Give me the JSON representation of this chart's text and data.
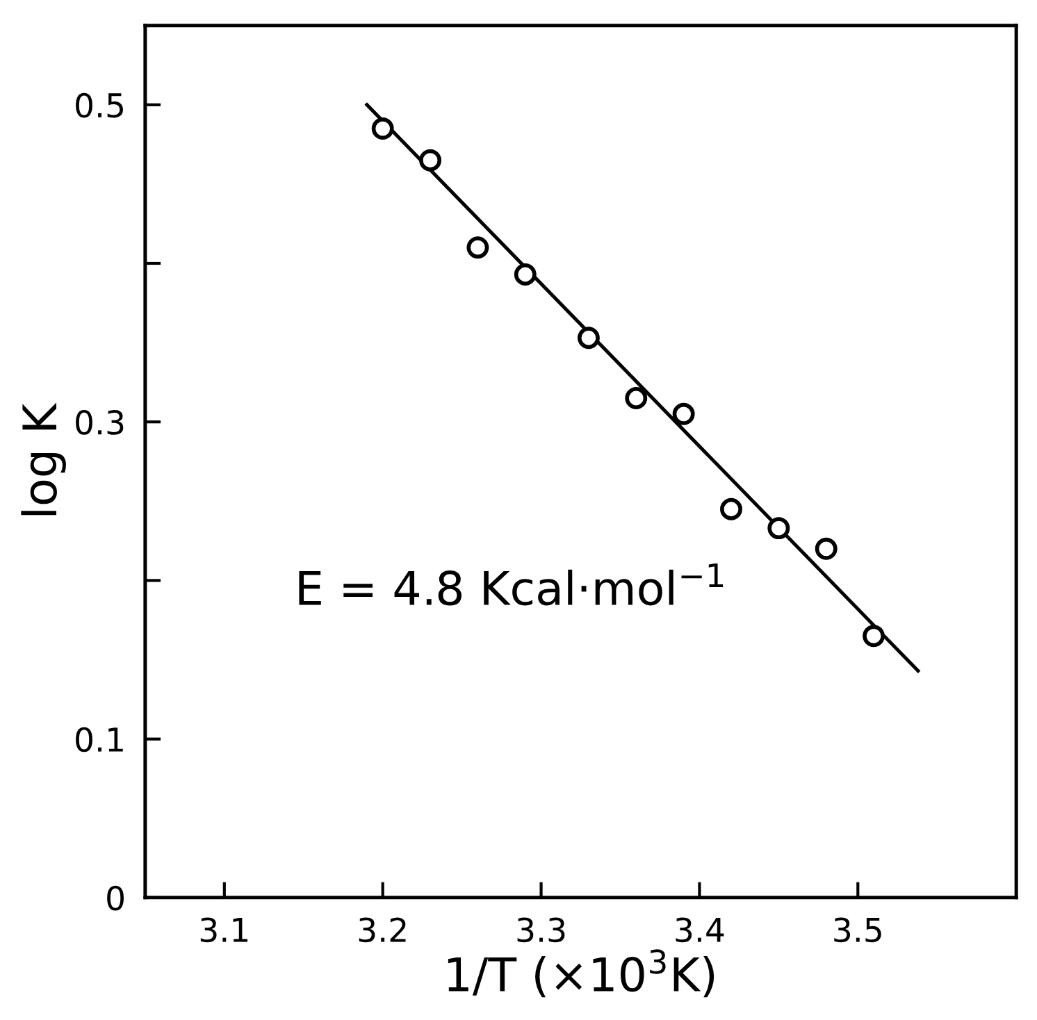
{
  "chart_data": {
    "type": "scatter",
    "xlabel": "1/T (×10$^{3}$K)",
    "ylabel": "log K",
    "annotations": [
      "E = 4.8 Kcal·mol$^{−1}$"
    ],
    "series": [
      {
        "color": "#000000",
        "marker": "circle",
        "x": [
          3.2,
          3.23,
          3.26,
          3.29,
          3.33,
          3.36,
          3.39,
          3.42,
          3.45,
          3.48,
          3.51
        ],
        "values": [
          0.485,
          0.465,
          0.41,
          0.393,
          0.353,
          0.315,
          0.305,
          0.245,
          0.233,
          0.22,
          0.165
        ]
      },
      {
        "type": "line",
        "color": "#000000",
        "line_style": "solid",
        "x": [
          3.19,
          3.538
        ],
        "values": [
          0.5,
          0.143
        ]
      }
    ],
    "xlim": [
      3.05,
      3.6
    ],
    "ylim": [
      0,
      0.55
    ],
    "xticks": [
      3.1,
      3.2,
      3.3,
      3.4,
      3.5
    ],
    "yticks": [
      0,
      0.1,
      {
        "value": 0.2,
        "label": null
      },
      0.3,
      {
        "value": 0.4,
        "label": null
      },
      0.5
    ],
    "grid": false,
    "legend": false
  }
}
